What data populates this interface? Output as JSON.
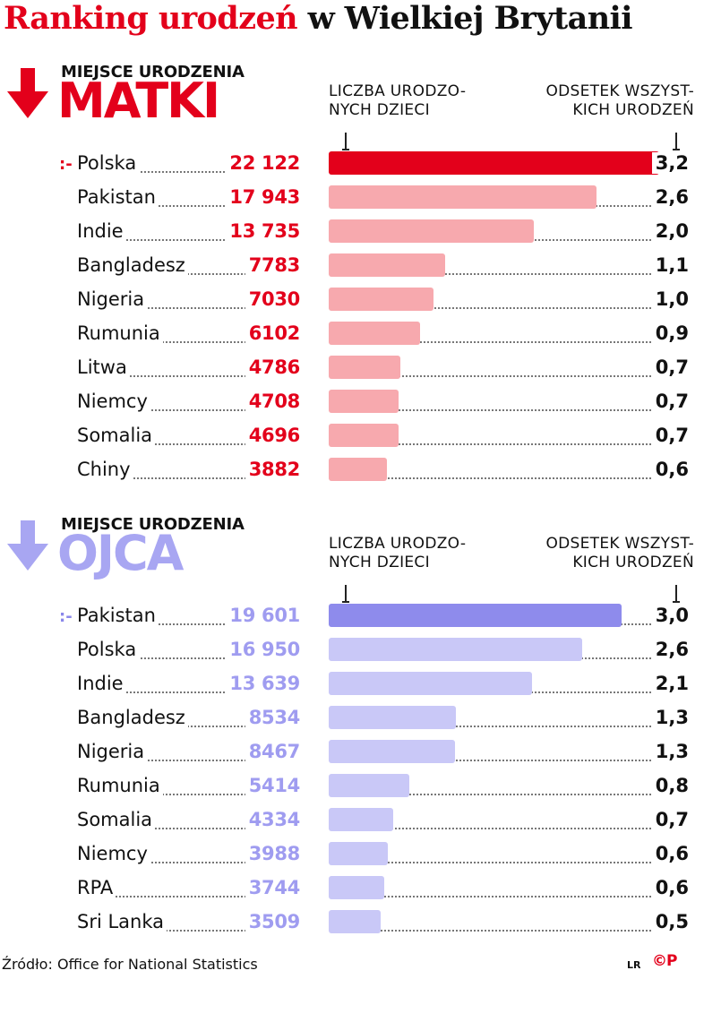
{
  "title_part1": "Ranking urodzeń",
  "title_part2": "w Wielkiej Brytanii",
  "column_count_label_line1": "LICZBA URODZO-",
  "column_count_label_line2": "NYCH DZIECI",
  "column_pct_label_line1": "ODSETEK WSZYST-",
  "column_pct_label_line2": "KICH URODZEŃ",
  "marker_glyph": ":-",
  "colors": {
    "brand_red": "#e3001b",
    "mother_top_bar": "#e3001b",
    "mother_bar": "#f7a9ae",
    "father_top_bar": "#8e8bec",
    "father_bar": "#c9c8f7"
  },
  "source": "Źródło: Office for National Statistics",
  "author": "LR",
  "logo": "©P",
  "chart_data": [
    {
      "type": "bar",
      "orientation": "horizontal",
      "subtitle": "MIEJSCE URODZENIA",
      "heading": "MATKI",
      "categories": [
        "Polska",
        "Pakistan",
        "Indie",
        "Bangladesz",
        "Nigeria",
        "Rumunia",
        "Litwa",
        "Niemcy",
        "Somalia",
        "Chiny"
      ],
      "values": [
        22122,
        17943,
        13735,
        7783,
        7030,
        6102,
        4786,
        4708,
        4696,
        3882
      ],
      "value_labels": [
        "22 122",
        "17 943",
        "13 735",
        "7783",
        "7030",
        "6102",
        "4786",
        "4708",
        "4696",
        "3882"
      ],
      "percent_labels": [
        "3,2",
        "2,6",
        "2,0",
        "1,1",
        "1,0",
        "0,9",
        "0,7",
        "0,7",
        "0,7",
        "0,6"
      ],
      "xlim": [
        0,
        24000
      ]
    },
    {
      "type": "bar",
      "orientation": "horizontal",
      "subtitle": "MIEJSCE URODZENIA",
      "heading": "OJCA",
      "categories": [
        "Pakistan",
        "Polska",
        "Indie",
        "Bangladesz",
        "Nigeria",
        "Rumunia",
        "Somalia",
        "Niemcy",
        "RPA",
        "Sri Lanka"
      ],
      "values": [
        19601,
        16950,
        13639,
        8534,
        8467,
        5414,
        4334,
        3988,
        3744,
        3509
      ],
      "value_labels": [
        "19 601",
        "16 950",
        "13 639",
        "8534",
        "8467",
        "5414",
        "4334",
        "3988",
        "3744",
        "3509"
      ],
      "percent_labels": [
        "3,0",
        "2,6",
        "2,1",
        "1,3",
        "1,3",
        "0,8",
        "0,7",
        "0,6",
        "0,6",
        "0,5"
      ],
      "xlim": [
        0,
        24000
      ]
    }
  ]
}
